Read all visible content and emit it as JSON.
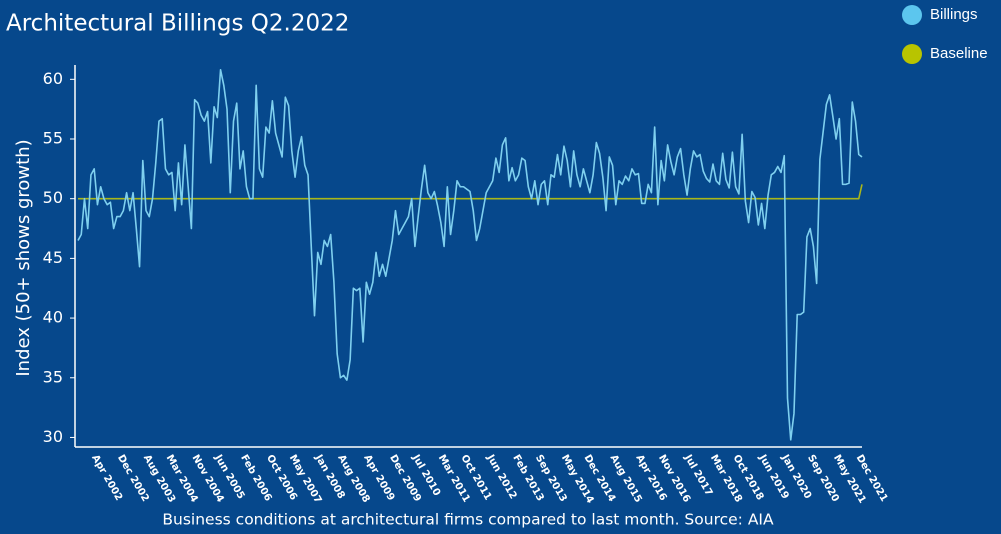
{
  "chart_data": {
    "type": "line",
    "title": "Architectural Billings Q2.2022",
    "y_label": "Index (50+ shows growth)",
    "x_label": "Business conditions at architectural firms compared to last month. Source: AIA",
    "categories": [
      null,
      null,
      null,
      "Apr 2002",
      null,
      null,
      null,
      null,
      null,
      null,
      null,
      "Dec 2002",
      null,
      null,
      null,
      null,
      null,
      null,
      null,
      "Aug 2003",
      null,
      null,
      null,
      null,
      null,
      null,
      "Mar 2004",
      null,
      null,
      null,
      null,
      null,
      null,
      null,
      "Nov 2004",
      null,
      null,
      null,
      null,
      null,
      null,
      "Jun 2005",
      null,
      null,
      null,
      null,
      null,
      null,
      null,
      "Feb 2006",
      null,
      null,
      null,
      null,
      null,
      null,
      null,
      "Oct 2006",
      null,
      null,
      null,
      null,
      null,
      null,
      "May 2007",
      null,
      null,
      null,
      null,
      null,
      null,
      null,
      "Jan 2008",
      null,
      null,
      null,
      null,
      null,
      null,
      "Aug 2008",
      null,
      null,
      null,
      null,
      null,
      null,
      null,
      "Apr 2009",
      null,
      null,
      null,
      null,
      null,
      null,
      null,
      "Dec 2009",
      null,
      null,
      null,
      null,
      null,
      null,
      "Jul 2010",
      null,
      null,
      null,
      null,
      null,
      null,
      null,
      "Mar 2011",
      null,
      null,
      null,
      null,
      null,
      null,
      "Oct 2011",
      null,
      null,
      null,
      null,
      null,
      null,
      null,
      "Jun 2012",
      null,
      null,
      null,
      null,
      null,
      null,
      null,
      "Feb 2013",
      null,
      null,
      null,
      null,
      null,
      null,
      "Sep 2013",
      null,
      null,
      null,
      null,
      null,
      null,
      null,
      "May 2014",
      null,
      null,
      null,
      null,
      null,
      null,
      "Dec 2014",
      null,
      null,
      null,
      null,
      null,
      null,
      null,
      "Aug 2015",
      null,
      null,
      null,
      null,
      null,
      null,
      null,
      "Apr 2016",
      null,
      null,
      null,
      null,
      null,
      null,
      "Nov 2016",
      null,
      null,
      null,
      null,
      null,
      null,
      null,
      "Jul 2017",
      null,
      null,
      null,
      null,
      null,
      null,
      null,
      "Mar 2018",
      null,
      null,
      null,
      null,
      null,
      null,
      "Oct 2018",
      null,
      null,
      null,
      null,
      null,
      null,
      null,
      "Jun 2019",
      null,
      null,
      null,
      null,
      null,
      null,
      "Jan 2020",
      null,
      null,
      null,
      null,
      null,
      null,
      null,
      "Sep 2020",
      null,
      null,
      null,
      null,
      null,
      null,
      null,
      "May 2021",
      null,
      null,
      null,
      null,
      null,
      null,
      "Dec 2021",
      null,
      null,
      null
    ],
    "series": [
      {
        "name": "Billings",
        "color": "#7fd0ef",
        "legend_color": "#5cc6ee",
        "values": [
          46.5,
          47,
          50,
          47.5,
          52,
          52.5,
          49.5,
          51,
          50,
          49.5,
          49.7,
          47.5,
          48.5,
          48.5,
          49,
          50.5,
          49,
          50.5,
          47.5,
          44.3,
          53.2,
          49,
          48.5,
          50,
          53,
          56.5,
          56.7,
          52.5,
          52,
          52.2,
          49,
          53,
          49.5,
          54.5,
          51,
          47.5,
          58.3,
          58,
          57,
          56.5,
          57.3,
          53,
          57.7,
          56.8,
          60.8,
          59.5,
          57.5,
          50.5,
          56.5,
          58,
          52.5,
          54,
          51,
          50,
          50,
          59.5,
          52.5,
          51.8,
          56,
          55.5,
          58.2,
          55.5,
          54.5,
          53.5,
          58.5,
          57.8,
          54,
          51.8,
          54,
          55.2,
          52.8,
          52,
          46,
          40.2,
          45.5,
          44.5,
          46.5,
          46,
          47,
          43,
          37,
          35,
          35.2,
          34.8,
          36.5,
          42.5,
          42.3,
          42.5,
          38,
          43,
          42,
          43,
          45.5,
          43.5,
          44.5,
          43.5,
          45,
          46.5,
          49,
          47,
          47.5,
          48,
          48.5,
          50,
          46,
          48.5,
          50.8,
          52.8,
          50.5,
          50,
          50.6,
          49.4,
          48,
          46,
          51,
          47,
          49,
          51.5,
          51,
          51,
          50.8,
          50.6,
          49,
          46.5,
          47.5,
          49,
          50.5,
          51,
          51.5,
          53.4,
          52.2,
          54.5,
          55.1,
          51.5,
          52.6,
          51.5,
          52,
          53.4,
          53.2,
          51,
          50,
          51.5,
          49.5,
          51.2,
          51.5,
          49.5,
          52,
          51.8,
          53.7,
          52,
          54.4,
          53.2,
          51,
          54,
          52,
          51,
          52.5,
          51.5,
          50.5,
          52,
          54.7,
          53.8,
          51.8,
          49,
          53.5,
          52.8,
          49.5,
          51.5,
          51.2,
          51.9,
          51.5,
          52.5,
          52,
          52.1,
          49.6,
          49.6,
          51.2,
          50.5,
          56,
          49.5,
          53.2,
          51.5,
          54.5,
          53.1,
          52,
          53.5,
          54.2,
          52,
          50.3,
          52.5,
          54,
          53.5,
          53.7,
          52.3,
          51.7,
          51.4,
          52.9,
          51.5,
          51.2,
          53.8,
          51.6,
          50.9,
          53.9,
          51,
          50.4,
          55.4,
          49.8,
          48,
          50.6,
          50.1,
          47.8,
          49.6,
          47.5,
          50.3,
          52,
          52.2,
          52.7,
          52.2,
          53.6,
          33.3,
          29.8,
          32,
          40.3,
          40.3,
          40.5,
          46.8,
          47.5,
          46,
          42.9,
          53.3,
          55.6,
          57.9,
          58.7,
          56.9,
          55,
          56.7,
          51.2,
          51.2,
          51.3,
          58.1,
          56.5,
          53.7,
          53.5
        ]
      },
      {
        "name": "Baseline",
        "color": "#a9b71a",
        "legend_color": "#b8c400",
        "values": [
          50,
          50,
          50,
          50,
          50,
          50,
          50,
          50,
          50,
          50,
          50,
          50,
          50,
          50,
          50,
          50,
          50,
          50,
          50,
          50,
          50,
          50,
          50,
          50,
          50,
          50,
          50,
          50,
          50,
          50,
          50,
          50,
          50,
          50,
          50,
          50,
          50,
          50,
          50,
          50,
          50,
          50,
          50,
          50,
          50,
          50,
          50,
          50,
          50,
          50,
          50,
          50,
          50,
          50,
          50,
          50,
          50,
          50,
          50,
          50,
          50,
          50,
          50,
          50,
          50,
          50,
          50,
          50,
          50,
          50,
          50,
          50,
          50,
          50,
          50,
          50,
          50,
          50,
          50,
          50,
          50,
          50,
          50,
          50,
          50,
          50,
          50,
          50,
          50,
          50,
          50,
          50,
          50,
          50,
          50,
          50,
          50,
          50,
          50,
          50,
          50,
          50,
          50,
          50,
          50,
          50,
          50,
          50,
          50,
          50,
          50,
          50,
          50,
          50,
          50,
          50,
          50,
          50,
          50,
          50,
          50,
          50,
          50,
          50,
          50,
          50,
          50,
          50,
          50,
          50,
          50,
          50,
          50,
          50,
          50,
          50,
          50,
          50,
          50,
          50,
          50,
          50,
          50,
          50,
          50,
          50,
          50,
          50,
          50,
          50,
          50,
          50,
          50,
          50,
          50,
          50,
          50,
          50,
          50,
          50,
          50,
          50,
          50,
          50,
          50,
          50,
          50,
          50,
          50,
          50,
          50,
          50,
          50,
          50,
          50,
          50,
          50,
          50,
          50,
          50,
          50,
          50,
          50,
          50,
          50,
          50,
          50,
          50,
          50,
          50,
          50,
          50,
          50,
          50,
          50,
          50,
          50,
          50,
          50,
          50,
          50,
          50,
          50,
          50,
          50,
          50,
          50,
          50,
          50,
          50,
          50,
          50,
          50,
          50,
          50,
          50,
          50,
          50,
          50,
          50,
          50,
          50,
          50,
          50,
          50,
          50,
          50,
          50,
          50,
          50,
          50,
          50,
          50,
          50,
          50,
          50,
          50,
          50,
          50,
          50,
          50,
          50,
          51.2
        ]
      }
    ],
    "ylim": [
      29.2,
      61.2
    ],
    "yticks": [
      30,
      35,
      40,
      45,
      50,
      55,
      60
    ],
    "legend": "top-right"
  }
}
